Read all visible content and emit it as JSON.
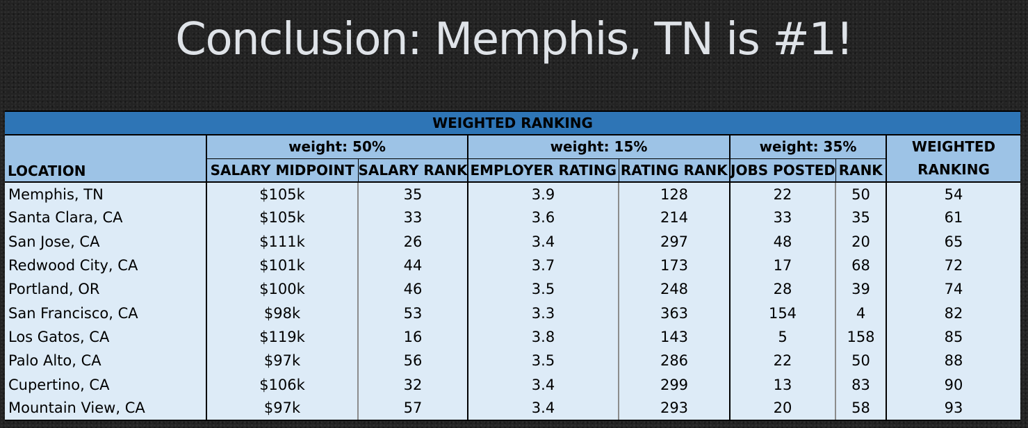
{
  "slide": {
    "title": "Conclusion: Memphis, TN is #1!"
  },
  "table": {
    "banner": "WEIGHTED RANKING",
    "weights": [
      "weight:  50%",
      "weight:  15%",
      "weight:  35%"
    ],
    "columns": {
      "location": "LOCATION",
      "salary_midpoint": "SALARY MIDPOINT",
      "salary_rank": "SALARY RANK",
      "employer_rating": "EMPLOYER RATING",
      "rating_rank": "RATING RANK",
      "jobs_posted": "JOBS POSTED",
      "jobs_rank": "RANK",
      "weighted_ranking": "WEIGHTED RANKING"
    },
    "rows": [
      {
        "location": "Memphis, TN",
        "salary_midpoint": "$105k",
        "salary_rank": "35",
        "employer_rating": "3.9",
        "rating_rank": "128",
        "jobs_posted": "22",
        "jobs_rank": "50",
        "weighted_ranking": "54"
      },
      {
        "location": "Santa Clara, CA",
        "salary_midpoint": "$105k",
        "salary_rank": "33",
        "employer_rating": "3.6",
        "rating_rank": "214",
        "jobs_posted": "33",
        "jobs_rank": "35",
        "weighted_ranking": "61"
      },
      {
        "location": "San Jose, CA",
        "salary_midpoint": "$111k",
        "salary_rank": "26",
        "employer_rating": "3.4",
        "rating_rank": "297",
        "jobs_posted": "48",
        "jobs_rank": "20",
        "weighted_ranking": "65"
      },
      {
        "location": "Redwood City, CA",
        "salary_midpoint": "$101k",
        "salary_rank": "44",
        "employer_rating": "3.7",
        "rating_rank": "173",
        "jobs_posted": "17",
        "jobs_rank": "68",
        "weighted_ranking": "72"
      },
      {
        "location": "Portland, OR",
        "salary_midpoint": "$100k",
        "salary_rank": "46",
        "employer_rating": "3.5",
        "rating_rank": "248",
        "jobs_posted": "28",
        "jobs_rank": "39",
        "weighted_ranking": "74"
      },
      {
        "location": "San Francisco, CA",
        "salary_midpoint": "$98k",
        "salary_rank": "53",
        "employer_rating": "3.3",
        "rating_rank": "363",
        "jobs_posted": "154",
        "jobs_rank": "4",
        "weighted_ranking": "82"
      },
      {
        "location": "Los Gatos, CA",
        "salary_midpoint": "$119k",
        "salary_rank": "16",
        "employer_rating": "3.8",
        "rating_rank": "143",
        "jobs_posted": "5",
        "jobs_rank": "158",
        "weighted_ranking": "85"
      },
      {
        "location": "Palo Alto, CA",
        "salary_midpoint": "$97k",
        "salary_rank": "56",
        "employer_rating": "3.5",
        "rating_rank": "286",
        "jobs_posted": "22",
        "jobs_rank": "50",
        "weighted_ranking": "88"
      },
      {
        "location": "Cupertino, CA",
        "salary_midpoint": "$106k",
        "salary_rank": "32",
        "employer_rating": "3.4",
        "rating_rank": "299",
        "jobs_posted": "13",
        "jobs_rank": "83",
        "weighted_ranking": "90"
      },
      {
        "location": "Mountain View, CA",
        "salary_midpoint": "$97k",
        "salary_rank": "57",
        "employer_rating": "3.4",
        "rating_rank": "293",
        "jobs_posted": "20",
        "jobs_rank": "58",
        "weighted_ranking": "93"
      }
    ]
  },
  "colors": {
    "background": "#232323",
    "title_text": "#dfe3e8",
    "banner": "#2e75b6",
    "header": "#9dc3e6",
    "body": "#ddebf7"
  }
}
